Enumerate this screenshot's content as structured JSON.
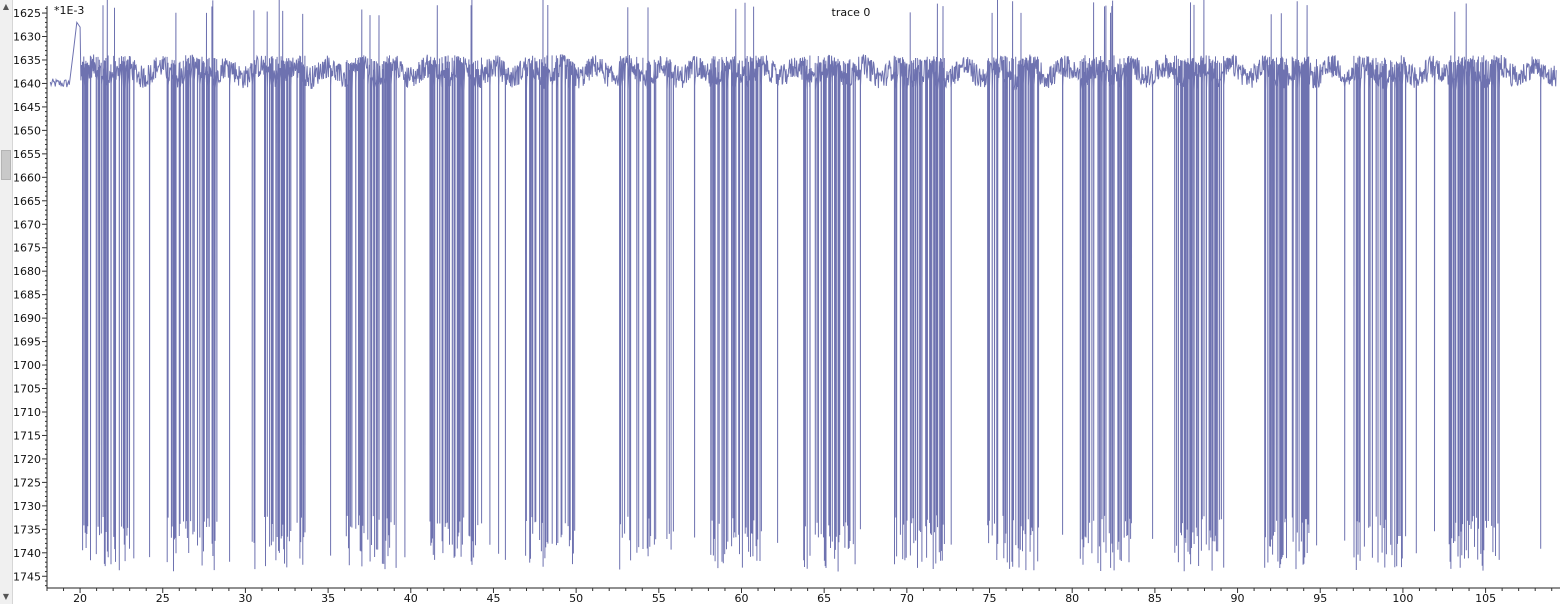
{
  "window": {
    "scroll_up_glyph": "▲",
    "scroll_down_glyph": "▼"
  },
  "chart_data": {
    "type": "line",
    "title": "trace 0",
    "y_multiplier_label": "*1E-3",
    "xlabel": "",
    "ylabel": "",
    "xlim": [
      18,
      109.5
    ],
    "ylim": [
      -1747.5,
      -1623.5
    ],
    "grid": false,
    "legend": "none",
    "line_color": "#6e72b0",
    "x_ticks": [
      20,
      25,
      30,
      35,
      40,
      45,
      50,
      55,
      60,
      65,
      70,
      75,
      80,
      85,
      90,
      95,
      100,
      105
    ],
    "y_ticks": [
      -1625,
      -1630,
      -1635,
      -1640,
      -1645,
      -1650,
      -1655,
      -1660,
      -1665,
      -1670,
      -1675,
      -1680,
      -1685,
      -1690,
      -1695,
      -1700,
      -1705,
      -1710,
      -1715,
      -1720,
      -1725,
      -1730,
      -1735,
      -1740,
      -1745
    ],
    "series": [
      {
        "baseline_start": [
          18.2,
          -1640
        ],
        "x_start": 18.2,
        "x_end": 109.3,
        "baseline_mean": -1637.5,
        "spike_top_typical": -1635,
        "spike_top_max": -1625.5,
        "spike_bottom_typical": -1738,
        "spike_bottom_min": -1747,
        "burst_centers": [
          21.5,
          26.8,
          32.0,
          37.6,
          42.7,
          48.5,
          54.2,
          59.6,
          65.3,
          70.8,
          76.4,
          82.0,
          87.7,
          93.2,
          98.6,
          104.3
        ],
        "burst_width": 3.2,
        "spikes_per_burst": 10
      }
    ]
  }
}
